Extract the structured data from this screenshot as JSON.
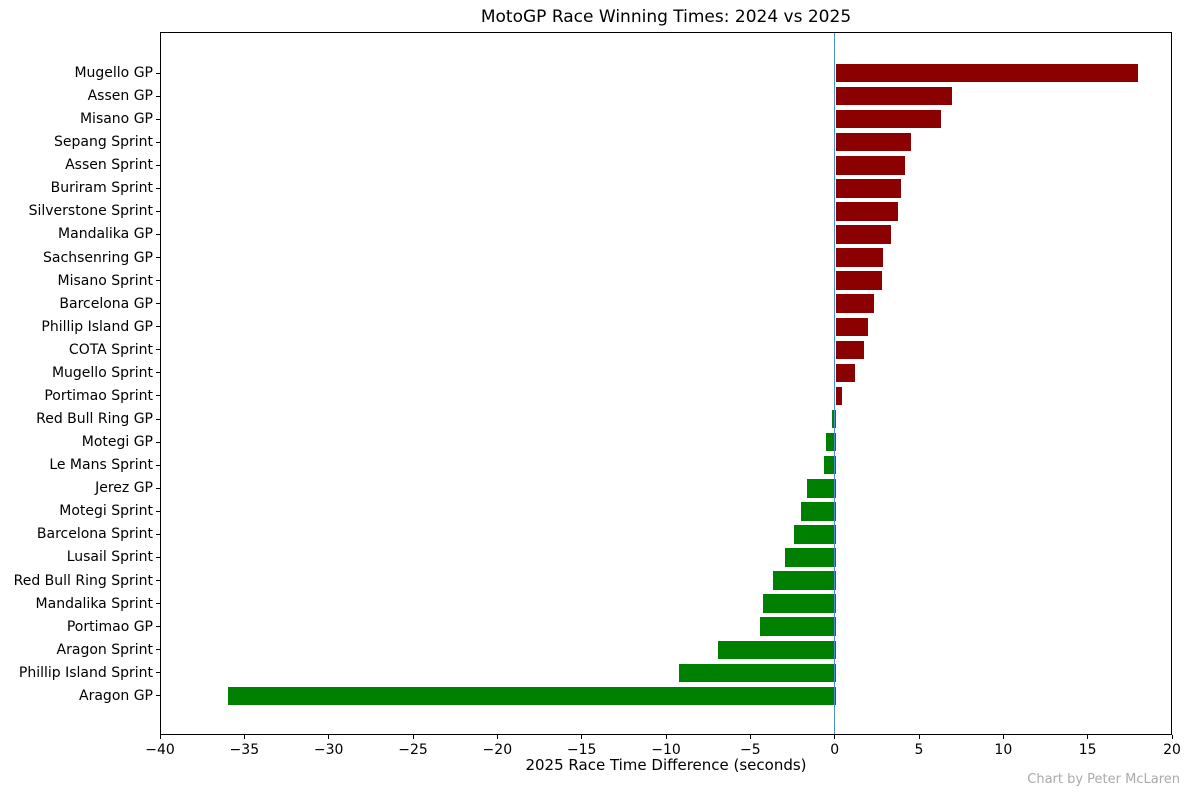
{
  "title": "MotoGP Race Winning Times: 2024 vs 2025",
  "x_axis_label": "2025 Race Time Difference (seconds)",
  "watermark": "Chart by Peter McLaren",
  "colors": {
    "positive_bar": "#8b0000",
    "negative_bar": "#008000",
    "zero_line": "#4a90d2",
    "spine": "#000000",
    "text": "#000000",
    "watermark": "#aaaaaa",
    "background": "#ffffff"
  },
  "chart_data": {
    "type": "bar",
    "orientation": "horizontal",
    "title": "MotoGP Race Winning Times: 2024 vs 2025",
    "xlabel": "2025 Race Time Difference (seconds)",
    "ylabel": "",
    "xlim": [
      -40,
      20
    ],
    "xticks": [
      -40,
      -35,
      -30,
      -25,
      -20,
      -15,
      -10,
      -5,
      0,
      5,
      10,
      15,
      20
    ],
    "grid": false,
    "legend": false,
    "zero_reference_line": 0,
    "annotation": "Chart by Peter McLaren",
    "categories": [
      "Mugello GP",
      "Assen GP",
      "Misano GP",
      "Sepang Sprint",
      "Assen Sprint",
      "Buriram Sprint",
      "Silverstone Sprint",
      "Mandalika GP",
      "Sachsenring GP",
      "Misano Sprint",
      "Barcelona GP",
      "Phillip Island GP",
      "COTA Sprint",
      "Mugello Sprint",
      "Portimao Sprint",
      "Red Bull Ring GP",
      "Motegi GP",
      "Le Mans Sprint",
      "Jerez GP",
      "Motegi Sprint",
      "Barcelona Sprint",
      "Lusail Sprint",
      "Red Bull Ring Sprint",
      "Mandalika Sprint",
      "Portimao GP",
      "Aragon Sprint",
      "Phillip Island Sprint",
      "Aragon GP"
    ],
    "values": [
      17.9,
      6.9,
      6.25,
      4.45,
      4.1,
      3.85,
      3.7,
      3.3,
      2.8,
      2.75,
      2.3,
      1.9,
      1.7,
      1.15,
      0.4,
      -0.2,
      -0.6,
      -0.7,
      -1.7,
      -2.05,
      -2.5,
      -3.0,
      -3.7,
      -4.3,
      -4.5,
      -7.0,
      -9.3,
      -36.0
    ]
  }
}
